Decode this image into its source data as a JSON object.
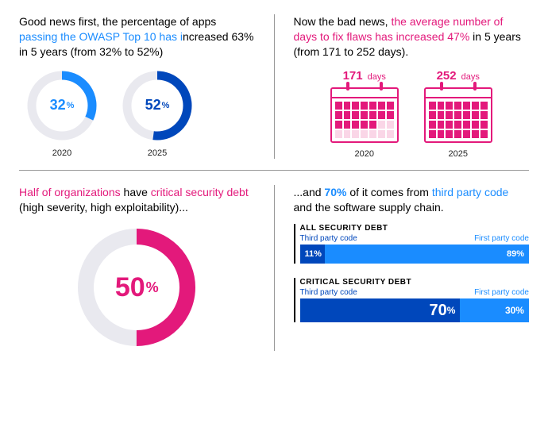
{
  "colors": {
    "blue_bright": "#1a8cff",
    "blue_dark": "#0047bb",
    "magenta": "#e3197b",
    "track": "#e9e9ef",
    "text": "#000000"
  },
  "panel_owasp": {
    "text_pre": "Good news first, the percentage of apps ",
    "text_link": "passing the OWASP Top 10 has i",
    "text_post1": "ncreased 63% in 5 years (from 32% to 52%)",
    "donuts": [
      {
        "value": 32,
        "label": "32",
        "caption": "2020",
        "color": "#1a8cff"
      },
      {
        "value": 52,
        "label": "52",
        "caption": "2025",
        "color": "#0047bb"
      }
    ],
    "ring_width": 11,
    "radius": 38
  },
  "panel_days": {
    "text_pre": "Now the bad news, ",
    "text_link": "the average number of days to fix flaws has increased 47%",
    "text_post": " in 5 years (from 171 to 252 days).",
    "calendars": [
      {
        "value": "171",
        "unit": "days",
        "caption": "2020",
        "filled": 19
      },
      {
        "value": "252",
        "unit": "days",
        "caption": "2025",
        "filled": 28
      }
    ],
    "grid_cells": 28
  },
  "panel_debt": {
    "text_link": "Half of organizations",
    "text_mid": " have ",
    "text_link2": "critical security debt",
    "text_post": " (high severity, high exploitability)...",
    "donut": {
      "value": 50,
      "label": "50",
      "color": "#e3197b",
      "ring_width": 20,
      "radius": 64
    }
  },
  "panel_supply": {
    "text_pre": "...and ",
    "text_link": "70%",
    "text_mid": " of it comes from ",
    "text_link2": "third party code",
    "text_post": " and the software supply chain.",
    "bars": [
      {
        "title": "ALL SECURITY DEBT",
        "left_label": "Third party code",
        "right_label": "First party code",
        "left_pct": 11,
        "right_pct": 89,
        "left_text": "11%",
        "right_text": "89%",
        "big": false
      },
      {
        "title": "CRITICAL SECURITY DEBT",
        "left_label": "Third party code",
        "right_label": "First party code",
        "left_pct": 70,
        "right_pct": 30,
        "left_text": "70",
        "left_suffix": "%",
        "right_text": "30%",
        "big": true
      }
    ]
  }
}
